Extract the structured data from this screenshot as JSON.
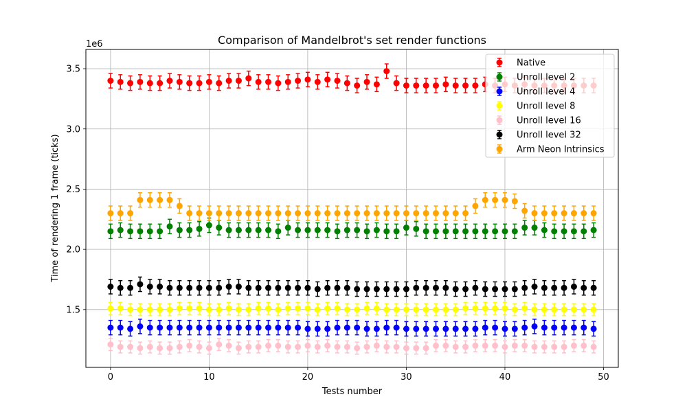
{
  "chart_data": {
    "type": "scatter",
    "title": "Comparison of Mandelbrot's set render functions",
    "xlabel": "Tests number",
    "ylabel": "Time of rendering 1 frame (ticks)",
    "offset_text": "1e6",
    "xlim": [
      -2.5,
      51.5
    ],
    "ylim": [
      1.02,
      3.66
    ],
    "y_scale_factor": 1000000,
    "x_ticks": [
      0,
      10,
      20,
      30,
      40,
      50
    ],
    "x_tick_labels": [
      "0",
      "10",
      "20",
      "30",
      "40",
      "50"
    ],
    "y_ticks": [
      1.5,
      2.0,
      2.5,
      3.0,
      3.5
    ],
    "y_tick_labels": [
      "1.5",
      "2.0",
      "2.5",
      "3.0",
      "3.5"
    ],
    "grid": true,
    "legend_position": "top-right",
    "x": [
      0,
      1,
      2,
      3,
      4,
      5,
      6,
      7,
      8,
      9,
      10,
      11,
      12,
      13,
      14,
      15,
      16,
      17,
      18,
      19,
      20,
      21,
      22,
      23,
      24,
      25,
      26,
      27,
      28,
      29,
      30,
      31,
      32,
      33,
      34,
      35,
      36,
      37,
      38,
      39,
      40,
      41,
      42,
      43,
      44,
      45,
      46,
      47,
      48,
      49
    ],
    "series": [
      {
        "name": "Native",
        "color": "#ff0000",
        "error": 0.06,
        "values": [
          3.4,
          3.39,
          3.38,
          3.39,
          3.38,
          3.38,
          3.4,
          3.39,
          3.38,
          3.38,
          3.39,
          3.38,
          3.4,
          3.4,
          3.42,
          3.39,
          3.39,
          3.38,
          3.39,
          3.4,
          3.41,
          3.39,
          3.41,
          3.4,
          3.38,
          3.36,
          3.39,
          3.37,
          3.48,
          3.38,
          3.36,
          3.36,
          3.36,
          3.36,
          3.37,
          3.36,
          3.36,
          3.36,
          3.37,
          3.36,
          3.37,
          3.36,
          3.37,
          3.36,
          3.36,
          3.36,
          3.36,
          3.36,
          3.36,
          3.36
        ]
      },
      {
        "name": "Unroll level 2",
        "color": "#008000",
        "error": 0.06,
        "values": [
          2.15,
          2.16,
          2.15,
          2.15,
          2.15,
          2.15,
          2.19,
          2.16,
          2.16,
          2.17,
          2.2,
          2.18,
          2.16,
          2.16,
          2.16,
          2.16,
          2.16,
          2.15,
          2.18,
          2.16,
          2.16,
          2.16,
          2.16,
          2.15,
          2.16,
          2.16,
          2.15,
          2.16,
          2.15,
          2.15,
          2.18,
          2.17,
          2.15,
          2.15,
          2.15,
          2.15,
          2.15,
          2.15,
          2.15,
          2.15,
          2.15,
          2.15,
          2.18,
          2.18,
          2.16,
          2.15,
          2.15,
          2.15,
          2.15,
          2.16
        ]
      },
      {
        "name": "Unroll level 4",
        "color": "#0000ff",
        "error": 0.06,
        "values": [
          1.35,
          1.35,
          1.34,
          1.36,
          1.35,
          1.35,
          1.35,
          1.35,
          1.35,
          1.35,
          1.35,
          1.35,
          1.35,
          1.35,
          1.35,
          1.35,
          1.35,
          1.35,
          1.35,
          1.35,
          1.34,
          1.34,
          1.34,
          1.35,
          1.35,
          1.35,
          1.34,
          1.34,
          1.35,
          1.35,
          1.34,
          1.34,
          1.34,
          1.34,
          1.34,
          1.34,
          1.34,
          1.34,
          1.35,
          1.35,
          1.34,
          1.34,
          1.35,
          1.36,
          1.35,
          1.35,
          1.35,
          1.35,
          1.35,
          1.34
        ]
      },
      {
        "name": "Unroll level 8",
        "color": "#ffff00",
        "error": 0.05,
        "values": [
          1.51,
          1.51,
          1.5,
          1.5,
          1.5,
          1.5,
          1.5,
          1.51,
          1.51,
          1.51,
          1.5,
          1.5,
          1.51,
          1.5,
          1.5,
          1.51,
          1.51,
          1.5,
          1.51,
          1.51,
          1.51,
          1.5,
          1.51,
          1.51,
          1.5,
          1.5,
          1.51,
          1.51,
          1.5,
          1.5,
          1.5,
          1.5,
          1.5,
          1.5,
          1.5,
          1.5,
          1.51,
          1.51,
          1.51,
          1.51,
          1.51,
          1.5,
          1.51,
          1.5,
          1.5,
          1.5,
          1.5,
          1.5,
          1.5,
          1.5
        ]
      },
      {
        "name": "Unroll level 16",
        "color": "#ffc0cb",
        "error": 0.05,
        "values": [
          1.21,
          1.19,
          1.19,
          1.18,
          1.19,
          1.18,
          1.18,
          1.19,
          1.2,
          1.19,
          1.18,
          1.21,
          1.2,
          1.18,
          1.19,
          1.19,
          1.2,
          1.2,
          1.19,
          1.19,
          1.2,
          1.19,
          1.2,
          1.19,
          1.19,
          1.18,
          1.19,
          1.2,
          1.19,
          1.19,
          1.18,
          1.18,
          1.18,
          1.2,
          1.2,
          1.19,
          1.19,
          1.2,
          1.2,
          1.2,
          1.19,
          1.2,
          1.2,
          1.19,
          1.19,
          1.19,
          1.19,
          1.2,
          1.2,
          1.19
        ]
      },
      {
        "name": "Unroll level 32",
        "color": "#000000",
        "error": 0.06,
        "values": [
          1.69,
          1.68,
          1.68,
          1.71,
          1.69,
          1.69,
          1.68,
          1.68,
          1.68,
          1.68,
          1.68,
          1.68,
          1.69,
          1.69,
          1.68,
          1.68,
          1.68,
          1.68,
          1.68,
          1.68,
          1.68,
          1.67,
          1.68,
          1.68,
          1.68,
          1.67,
          1.67,
          1.67,
          1.67,
          1.67,
          1.67,
          1.68,
          1.68,
          1.68,
          1.68,
          1.67,
          1.67,
          1.68,
          1.67,
          1.67,
          1.67,
          1.67,
          1.68,
          1.69,
          1.68,
          1.68,
          1.68,
          1.69,
          1.68,
          1.68
        ]
      },
      {
        "name": "Arm Neon Intrinsics",
        "color": "#ffa500",
        "error": 0.06,
        "values": [
          2.3,
          2.3,
          2.3,
          2.41,
          2.41,
          2.41,
          2.41,
          2.36,
          2.3,
          2.3,
          2.3,
          2.3,
          2.3,
          2.3,
          2.3,
          2.3,
          2.3,
          2.3,
          2.3,
          2.3,
          2.3,
          2.3,
          2.3,
          2.3,
          2.3,
          2.3,
          2.3,
          2.3,
          2.3,
          2.3,
          2.3,
          2.3,
          2.3,
          2.3,
          2.3,
          2.3,
          2.3,
          2.36,
          2.41,
          2.41,
          2.41,
          2.4,
          2.32,
          2.3,
          2.3,
          2.3,
          2.3,
          2.3,
          2.3,
          2.3
        ]
      }
    ]
  }
}
